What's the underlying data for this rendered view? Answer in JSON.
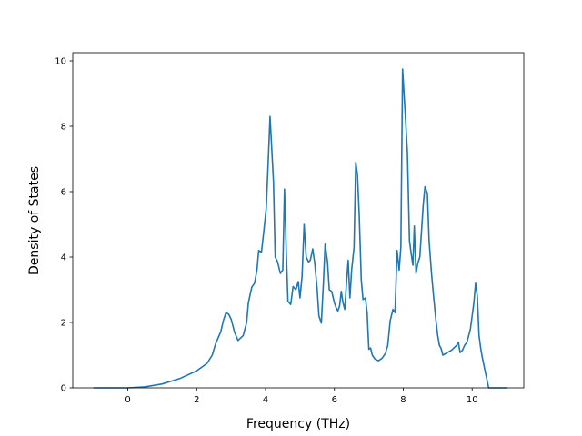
{
  "chart_data": {
    "type": "line",
    "title": "",
    "xlabel": "Frequency (THz)",
    "ylabel": "Density of States",
    "xlim": [
      -1.6,
      11.5
    ],
    "ylim": [
      0,
      10.25
    ],
    "xticks": [
      0,
      2,
      4,
      6,
      8,
      10
    ],
    "yticks": [
      0,
      2,
      4,
      6,
      8,
      10
    ],
    "grid": false,
    "legend": "none",
    "series": [
      {
        "color": "#1f77b4",
        "points": [
          [
            -1.0,
            0.0
          ],
          [
            0.0,
            0.0
          ],
          [
            0.5,
            0.03
          ],
          [
            1.0,
            0.12
          ],
          [
            1.5,
            0.28
          ],
          [
            2.0,
            0.52
          ],
          [
            2.3,
            0.75
          ],
          [
            2.45,
            1.0
          ],
          [
            2.55,
            1.35
          ],
          [
            2.7,
            1.72
          ],
          [
            2.78,
            2.08
          ],
          [
            2.85,
            2.3
          ],
          [
            2.93,
            2.25
          ],
          [
            3.0,
            2.1
          ],
          [
            3.1,
            1.7
          ],
          [
            3.2,
            1.45
          ],
          [
            3.35,
            1.6
          ],
          [
            3.45,
            2.0
          ],
          [
            3.5,
            2.6
          ],
          [
            3.6,
            3.08
          ],
          [
            3.68,
            3.2
          ],
          [
            3.75,
            3.6
          ],
          [
            3.8,
            4.2
          ],
          [
            3.88,
            4.15
          ],
          [
            3.95,
            4.8
          ],
          [
            4.02,
            5.5
          ],
          [
            4.08,
            7.0
          ],
          [
            4.13,
            8.3
          ],
          [
            4.18,
            7.3
          ],
          [
            4.23,
            6.3
          ],
          [
            4.28,
            4.0
          ],
          [
            4.35,
            3.85
          ],
          [
            4.43,
            3.5
          ],
          [
            4.5,
            3.6
          ],
          [
            4.55,
            6.08
          ],
          [
            4.6,
            4.2
          ],
          [
            4.65,
            2.65
          ],
          [
            4.73,
            2.55
          ],
          [
            4.8,
            3.1
          ],
          [
            4.88,
            3.0
          ],
          [
            4.95,
            3.25
          ],
          [
            5.0,
            2.75
          ],
          [
            5.06,
            3.4
          ],
          [
            5.12,
            5.0
          ],
          [
            5.18,
            4.0
          ],
          [
            5.25,
            3.85
          ],
          [
            5.3,
            3.9
          ],
          [
            5.37,
            4.25
          ],
          [
            5.43,
            3.8
          ],
          [
            5.5,
            3.0
          ],
          [
            5.55,
            2.2
          ],
          [
            5.62,
            1.98
          ],
          [
            5.68,
            3.2
          ],
          [
            5.73,
            4.4
          ],
          [
            5.8,
            3.85
          ],
          [
            5.85,
            3.0
          ],
          [
            5.92,
            2.95
          ],
          [
            6.0,
            2.6
          ],
          [
            6.05,
            2.45
          ],
          [
            6.1,
            2.35
          ],
          [
            6.15,
            2.5
          ],
          [
            6.2,
            2.95
          ],
          [
            6.25,
            2.6
          ],
          [
            6.3,
            2.4
          ],
          [
            6.35,
            3.2
          ],
          [
            6.4,
            3.9
          ],
          [
            6.45,
            2.75
          ],
          [
            6.5,
            3.6
          ],
          [
            6.57,
            4.3
          ],
          [
            6.62,
            6.9
          ],
          [
            6.67,
            6.5
          ],
          [
            6.72,
            5.3
          ],
          [
            6.78,
            3.3
          ],
          [
            6.83,
            2.7
          ],
          [
            6.9,
            2.75
          ],
          [
            6.95,
            2.3
          ],
          [
            7.0,
            1.18
          ],
          [
            7.05,
            1.22
          ],
          [
            7.1,
            1.0
          ],
          [
            7.18,
            0.88
          ],
          [
            7.28,
            0.83
          ],
          [
            7.38,
            0.9
          ],
          [
            7.48,
            1.05
          ],
          [
            7.55,
            1.3
          ],
          [
            7.62,
            2.05
          ],
          [
            7.7,
            2.4
          ],
          [
            7.76,
            2.3
          ],
          [
            7.82,
            4.2
          ],
          [
            7.88,
            3.6
          ],
          [
            7.93,
            4.3
          ],
          [
            7.98,
            9.75
          ],
          [
            8.05,
            8.5
          ],
          [
            8.12,
            7.2
          ],
          [
            8.18,
            4.5
          ],
          [
            8.23,
            4.1
          ],
          [
            8.28,
            3.75
          ],
          [
            8.32,
            4.95
          ],
          [
            8.37,
            3.5
          ],
          [
            8.42,
            3.8
          ],
          [
            8.48,
            4.0
          ],
          [
            8.53,
            4.8
          ],
          [
            8.58,
            5.6
          ],
          [
            8.63,
            6.15
          ],
          [
            8.7,
            5.95
          ],
          [
            8.75,
            4.5
          ],
          [
            8.82,
            3.5
          ],
          [
            8.88,
            2.8
          ],
          [
            8.95,
            2.05
          ],
          [
            9.0,
            1.6
          ],
          [
            9.05,
            1.3
          ],
          [
            9.1,
            1.2
          ],
          [
            9.15,
            1.0
          ],
          [
            9.25,
            1.06
          ],
          [
            9.4,
            1.15
          ],
          [
            9.55,
            1.3
          ],
          [
            9.6,
            1.4
          ],
          [
            9.65,
            1.08
          ],
          [
            9.72,
            1.15
          ],
          [
            9.78,
            1.3
          ],
          [
            9.85,
            1.4
          ],
          [
            9.9,
            1.6
          ],
          [
            9.95,
            1.8
          ],
          [
            10.0,
            2.2
          ],
          [
            10.05,
            2.6
          ],
          [
            10.1,
            3.2
          ],
          [
            10.15,
            2.8
          ],
          [
            10.2,
            1.6
          ],
          [
            10.25,
            1.2
          ],
          [
            10.3,
            0.9
          ],
          [
            10.35,
            0.65
          ],
          [
            10.42,
            0.3
          ],
          [
            10.48,
            0.0
          ],
          [
            11.0,
            0.0
          ]
        ]
      }
    ]
  }
}
